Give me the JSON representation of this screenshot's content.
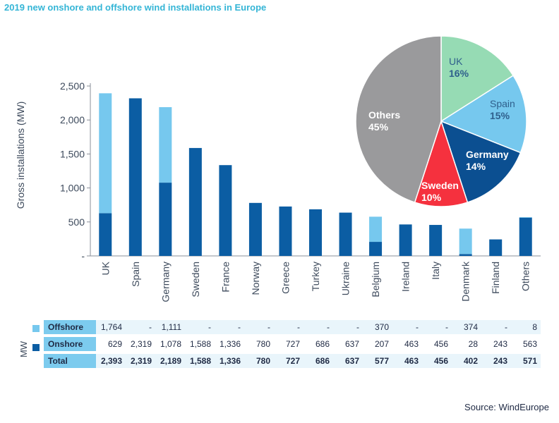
{
  "title": "2019 new onshore and offshore wind installations in Europe",
  "source": "Source: WindEurope",
  "table_unit_label": "MW",
  "colors": {
    "offshore": "#76c8ee",
    "onshore": "#0b5da3",
    "title": "#34b5d6"
  },
  "chart_data": [
    {
      "type": "bar",
      "stacked": true,
      "ylabel": "Gross installations (MW)",
      "ylim": [
        0,
        2500
      ],
      "yticks": [
        "-",
        "500",
        "1,000",
        "1,500",
        "2,000",
        "2,500"
      ],
      "categories": [
        "UK",
        "Spain",
        "Germany",
        "Sweden",
        "France",
        "Norway",
        "Greece",
        "Turkey",
        "Ukraine",
        "Belgium",
        "Ireland",
        "Italy",
        "Denmark",
        "Finland",
        "Others"
      ],
      "series": [
        {
          "name": "Onshore",
          "values": [
            629,
            2319,
            1078,
            1588,
            1336,
            780,
            727,
            686,
            637,
            207,
            463,
            456,
            28,
            243,
            563
          ]
        },
        {
          "name": "Offshore",
          "values": [
            1764,
            0,
            1111,
            0,
            0,
            0,
            0,
            0,
            0,
            370,
            0,
            0,
            374,
            0,
            8
          ]
        }
      ],
      "grid": false
    },
    {
      "type": "pie",
      "slices": [
        {
          "label": "UK",
          "pct_label": "16%",
          "value": 16,
          "color": "#96dbb4"
        },
        {
          "label": "Spain",
          "pct_label": "15%",
          "value": 15,
          "color": "#76c8ee"
        },
        {
          "label": "Germany",
          "pct_label": "14%",
          "value": 14,
          "color": "#0b4f91"
        },
        {
          "label": "Sweden",
          "pct_label": "10%",
          "value": 10,
          "color": "#f5313e"
        },
        {
          "label": "Others",
          "pct_label": "45%",
          "value": 45,
          "color": "#9a9a9c"
        }
      ]
    },
    {
      "type": "table",
      "rows": [
        {
          "label": "Offshore",
          "values": [
            "1,764",
            "-",
            "1,111",
            "-",
            "-",
            "-",
            "-",
            "-",
            "-",
            "370",
            "-",
            "-",
            "374",
            "-",
            "8"
          ]
        },
        {
          "label": "Onshore",
          "values": [
            "629",
            "2,319",
            "1,078",
            "1,588",
            "1,336",
            "780",
            "727",
            "686",
            "637",
            "207",
            "463",
            "456",
            "28",
            "243",
            "563"
          ]
        },
        {
          "label": "Total",
          "values": [
            "2,393",
            "2,319",
            "2,189",
            "1,588",
            "1,336",
            "780",
            "727",
            "686",
            "637",
            "577",
            "463",
            "456",
            "402",
            "243",
            "571"
          ]
        }
      ]
    }
  ]
}
